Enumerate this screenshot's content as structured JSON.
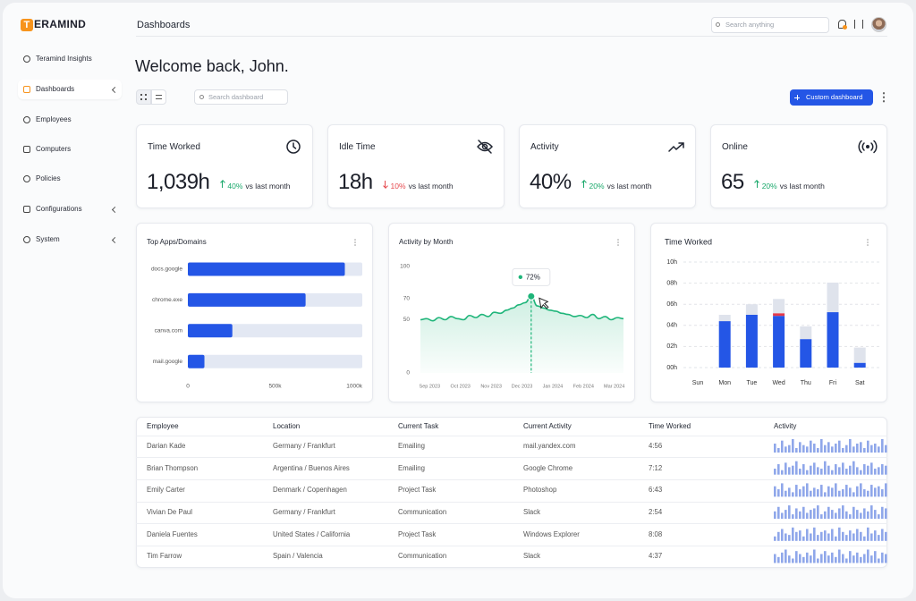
{
  "sidebar": {
    "logo_initial": "T",
    "logo_rest": "ERAMIND",
    "nav": [
      {
        "label": "Teramind Insights"
      },
      {
        "label": "Dashboards",
        "active": true,
        "expandable": true
      },
      {
        "label": "Employees"
      },
      {
        "label": "Computers"
      },
      {
        "label": "Policies"
      },
      {
        "label": "Configurations",
        "expandable": true
      },
      {
        "label": "System",
        "expandable": true
      }
    ]
  },
  "header": {
    "title": "Dashboards",
    "search_placeholder": "Search anything"
  },
  "welcome": "Welcome back, John.",
  "toolbar": {
    "search_placeholder": "Search dashboard",
    "button": "Custom dashboard"
  },
  "stats": [
    {
      "title": "Time Worked",
      "icon": "clock",
      "value": "1,039h",
      "change": "40%",
      "trend": "up",
      "comparison": "vs last month"
    },
    {
      "title": "Idle Time",
      "icon": "eye-off",
      "value": "18h",
      "change": "10%",
      "trend": "down",
      "comparison": "vs last month"
    },
    {
      "title": "Activity",
      "icon": "trend",
      "value": "40%",
      "change": "20%",
      "trend": "up",
      "comparison": "vs last month"
    },
    {
      "title": "Online",
      "icon": "broadcast",
      "value": "65",
      "change": "20%",
      "trend": "up",
      "comparison": "vs last month"
    }
  ],
  "chart_data": [
    {
      "type": "bar",
      "orientation": "horizontal",
      "title": "Top Apps/Domains",
      "categories": [
        "docs.google",
        "chrome.exe",
        "canva.com",
        "mail.google"
      ],
      "values": [
        900000,
        675000,
        255000,
        95000
      ],
      "color": "#2456e6",
      "track_color": "#e3e8f3",
      "xlim": [
        0,
        1000000
      ],
      "xticks": [
        0,
        {
          "value": 500000,
          "label": "500k"
        },
        {
          "value": 1000000,
          "label": "1000k"
        }
      ]
    },
    {
      "type": "line",
      "title": "Activity by Month",
      "x": [
        -0.3,
        -0.1,
        0.1,
        0.3,
        0.5,
        0.7,
        0.9,
        1.1,
        1.3,
        1.5,
        1.7,
        1.9,
        2.1,
        2.3,
        2.5,
        2.7,
        2.9,
        3.1,
        3.3,
        3.5,
        3.7,
        3.9,
        4.1,
        4.3,
        4.5,
        4.7,
        4.9,
        5.1,
        5.3,
        5.5,
        5.7,
        5.9,
        6.1,
        6.3
      ],
      "values": [
        50,
        51,
        49,
        52,
        50,
        53,
        51,
        50,
        54,
        52,
        55,
        53,
        57,
        56,
        59,
        61,
        64,
        66,
        72,
        63,
        61,
        59,
        58,
        56,
        55,
        53,
        54,
        52,
        55,
        51,
        53,
        50,
        52,
        51
      ],
      "color": "#1fb57a",
      "xlim": [
        -0.3,
        6.3
      ],
      "xticks": [
        {
          "value": 0,
          "label": "Sep 2023"
        },
        {
          "value": 1,
          "label": "Oct 2023"
        },
        {
          "value": 2,
          "label": "Nov 2023"
        },
        {
          "value": 3,
          "label": "Dec 2023"
        },
        {
          "value": 4,
          "label": "Jan 2024"
        },
        {
          "value": 5,
          "label": "Feb 2024"
        },
        {
          "value": 6,
          "label": "Mar 2024"
        }
      ],
      "ylim": [
        0,
        100
      ],
      "yticks": [
        0,
        50,
        70,
        100
      ],
      "grid": false,
      "highlight": {
        "x": 3.3,
        "y": 72,
        "label": "72%"
      }
    },
    {
      "type": "stacked_bar",
      "title": "Time Worked",
      "categories": [
        "Sun",
        "Mon",
        "Tue",
        "Wed",
        "Thu",
        "Fri",
        "Sat"
      ],
      "series": [
        {
          "color": "#2456e6",
          "values": [
            0,
            4.4,
            5.0,
            4.9,
            2.7,
            5.25,
            0.45
          ]
        },
        {
          "color": "#e5394b",
          "values": [
            0,
            0,
            0,
            0.25,
            0,
            0,
            0
          ]
        },
        {
          "color": "#dfe3ec",
          "values": [
            0,
            0.6,
            1.0,
            1.35,
            1.2,
            2.8,
            1.45
          ]
        }
      ],
      "ylim": [
        0,
        10
      ],
      "yticks": [
        {
          "value": 0,
          "label": "00h"
        },
        {
          "value": 2,
          "label": "02h"
        },
        {
          "value": 4,
          "label": "04h"
        },
        {
          "value": 6,
          "label": "06h"
        },
        {
          "value": 8,
          "label": "08h"
        },
        {
          "value": 10,
          "label": "10h"
        }
      ],
      "grid": true
    }
  ],
  "table": {
    "columns": [
      "Employee",
      "Location",
      "Current Task",
      "Current Activity",
      "Time Worked",
      "Activity"
    ],
    "rows": [
      [
        "Darian Kade",
        "Germany / Frankfurt",
        "Emailing",
        "mail.yandex.com",
        "4:56"
      ],
      [
        "Brian Thompson",
        "Argentina / Buenos Aires",
        "Emailing",
        "Google Chrome",
        "7:12"
      ],
      [
        "Emily Carter",
        "Denmark / Copenhagen",
        "Project Task",
        "Photoshop",
        "6:43"
      ],
      [
        "Vivian De Paul",
        "Germany / Frankfurt",
        "Communication",
        "Slack",
        "2:54"
      ],
      [
        "Daniela Fuentes",
        "United States / California",
        "Project Task",
        "Windows Explorer",
        "8:08"
      ],
      [
        "Tim Farrow",
        "Spain / Valencia",
        "Communication",
        "Slack",
        "4:37"
      ]
    ],
    "activity_color": "#8fa7ea",
    "activity": [
      [
        6,
        3,
        8,
        4,
        5,
        9,
        3,
        7,
        5,
        4,
        8,
        6,
        3,
        9,
        5,
        7,
        4,
        6,
        8,
        3,
        5,
        9,
        4,
        6,
        7,
        3,
        8,
        5,
        6,
        4,
        9,
        5
      ],
      [
        4,
        7,
        3,
        8,
        5,
        6,
        9,
        4,
        7,
        3,
        6,
        8,
        5,
        4,
        9,
        6,
        3,
        7,
        5,
        8,
        4,
        6,
        9,
        5,
        3,
        7,
        6,
        8,
        4,
        5,
        7,
        6
      ],
      [
        7,
        5,
        9,
        4,
        6,
        3,
        8,
        5,
        7,
        9,
        4,
        6,
        5,
        8,
        3,
        7,
        6,
        9,
        4,
        5,
        8,
        6,
        3,
        7,
        9,
        5,
        4,
        8,
        6,
        7,
        5,
        9
      ],
      [
        5,
        8,
        4,
        6,
        9,
        3,
        7,
        5,
        8,
        4,
        6,
        7,
        9,
        3,
        5,
        8,
        6,
        4,
        7,
        9,
        5,
        3,
        8,
        6,
        4,
        7,
        5,
        9,
        6,
        3,
        8,
        7
      ],
      [
        3,
        6,
        8,
        5,
        4,
        9,
        6,
        7,
        3,
        8,
        5,
        9,
        4,
        6,
        7,
        5,
        8,
        3,
        9,
        6,
        4,
        7,
        5,
        8,
        6,
        3,
        9,
        5,
        7,
        4,
        8,
        6
      ],
      [
        6,
        4,
        7,
        9,
        5,
        3,
        8,
        6,
        4,
        7,
        5,
        9,
        3,
        6,
        8,
        5,
        7,
        4,
        9,
        6,
        3,
        8,
        5,
        7,
        4,
        6,
        9,
        5,
        8,
        3,
        7,
        6
      ]
    ]
  }
}
